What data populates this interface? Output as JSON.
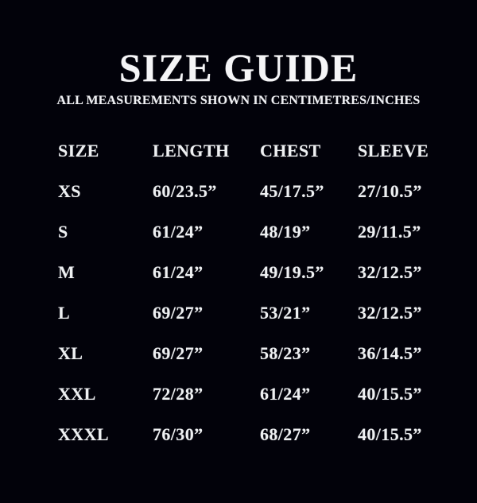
{
  "page": {
    "title": "SIZE GUIDE",
    "subtitle": "ALL MEASUREMENTS SHOWN IN CENTIMETRES/INCHES"
  },
  "colors": {
    "background": "#02020a",
    "text": "#eef0f2"
  },
  "table": {
    "headers": [
      "SIZE",
      "LENGTH",
      "CHEST",
      "SLEEVE"
    ],
    "rows": [
      {
        "size": "XS",
        "length": "60/23.5”",
        "chest": "45/17.5”",
        "sleeve": "27/10.5”"
      },
      {
        "size": "S",
        "length": "61/24”",
        "chest": "48/19”",
        "sleeve": "29/11.5”"
      },
      {
        "size": "M",
        "length": "61/24”",
        "chest": "49/19.5”",
        "sleeve": "32/12.5”"
      },
      {
        "size": "L",
        "length": "69/27”",
        "chest": "53/21”",
        "sleeve": "32/12.5”"
      },
      {
        "size": "XL",
        "length": "69/27”",
        "chest": "58/23”",
        "sleeve": "36/14.5”"
      },
      {
        "size": "XXL",
        "length": "72/28”",
        "chest": "61/24”",
        "sleeve": "40/15.5”"
      },
      {
        "size": "XXXL",
        "length": "76/30”",
        "chest": "68/27”",
        "sleeve": "40/15.5”"
      }
    ]
  }
}
